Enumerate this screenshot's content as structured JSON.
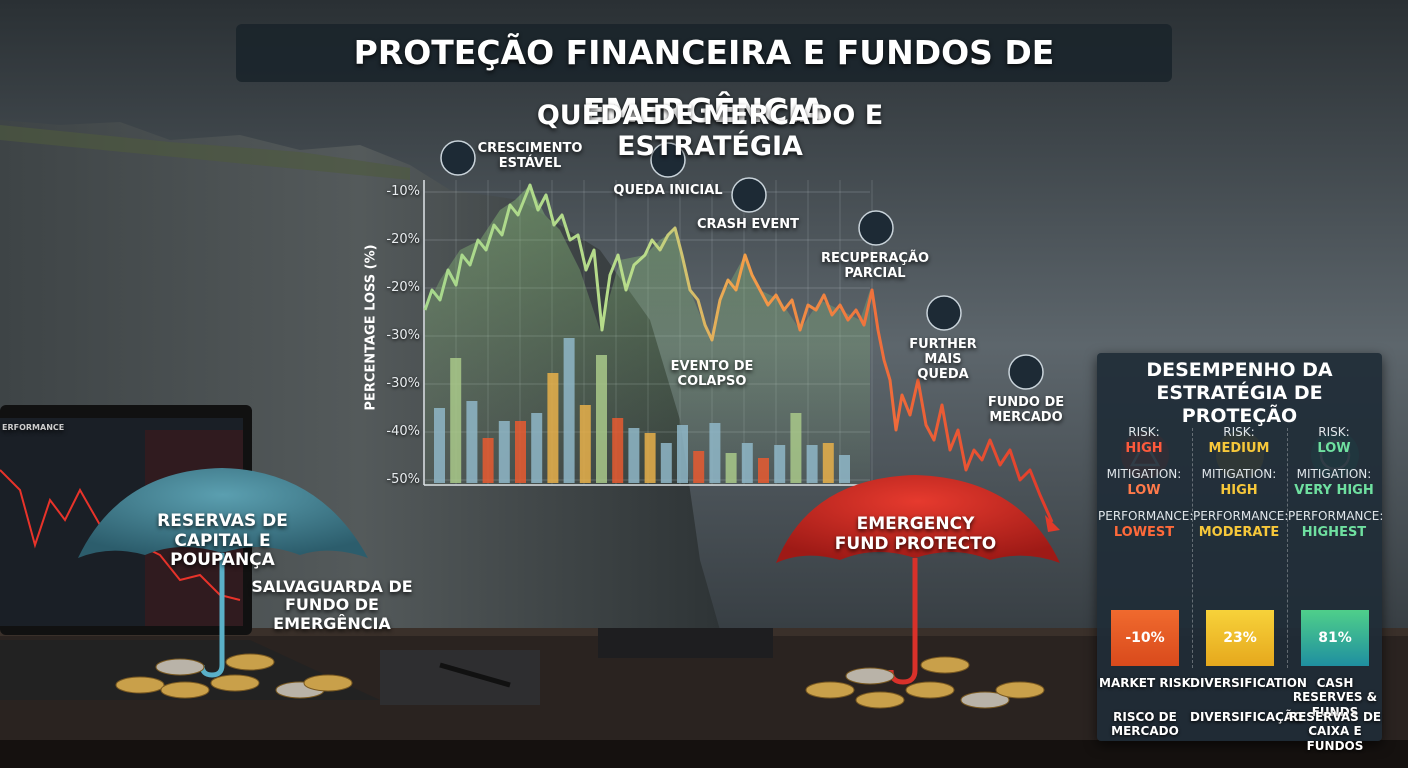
{
  "title": "PROTEÇÃO FINANCEIRA E FUNDOS DE EMERGÊNCIA",
  "chart": {
    "title": "QUEDA DE MERCADO E ESTRATÉGIA",
    "y_axis_title": "PERCENTAGE LOSS (%)",
    "y_tick_labels": [
      "-10%",
      "-20%",
      "-20%",
      "-30%",
      "-30%",
      "-40%",
      "-50%"
    ],
    "annotations": [
      "CRESCIMENTO ESTÁVEL",
      "QUEDA INICIAL",
      "CRASH EVENT",
      "EVENTO DE COLAPSO",
      "RECUPERAÇÃO PARCIAL",
      "FURTHER MAIS QUEDA",
      "FUNDO DE MERCADO"
    ]
  },
  "laptop_label": "ERFORMANCE",
  "umbrellas": {
    "left": "RESERVAS DE CAPITAL E POUPANÇA",
    "left_caption": "SALVAGUARDA DE FUNDO DE EMERGÊNCIA",
    "right": "EMERGENCY FUND PROTECTO"
  },
  "panel": {
    "title": "DESEMPENHO DA ESTRATÉGIA DE PROTEÇÃO",
    "columns": [
      {
        "risk_label": "RISK:",
        "risk": "HIGH",
        "mitigation_label": "MITIGATION:",
        "mitigation": "LOW",
        "performance_label": "PERFORMANCE:",
        "performance": "LOWEST",
        "value": "-10%",
        "name": "MARKET RISK",
        "name_pt": "RISCO DE MERCADO"
      },
      {
        "risk_label": "RISK:",
        "risk": "MEDIUM",
        "mitigation_label": "MITIGATION:",
        "mitigation": "HIGH",
        "performance_label": "PERFORMANCE:",
        "performance": "MODERATE",
        "value": "23%",
        "name": "DIVERSIFICATION",
        "name_pt": "DIVERSIFICAÇÃO"
      },
      {
        "risk_label": "RISK:",
        "risk": "LOW",
        "mitigation_label": "MITIGATION:",
        "mitigation": "VERY HIGH",
        "performance_label": "PERFORMANCE:",
        "performance": "HIGHEST",
        "value": "81%",
        "name": "CASH RESERVES & FUNDS",
        "name_pt": "RESERVAS DE CAIXA E FUNDOS"
      }
    ]
  }
}
